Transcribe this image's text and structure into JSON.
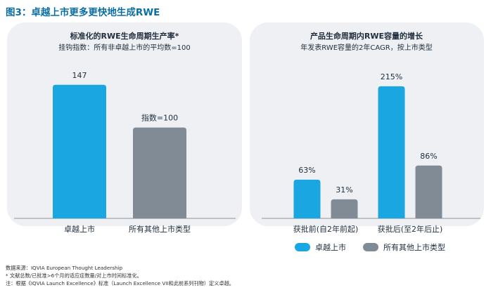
{
  "figure_title": "图3：卓越上市更多更快地生成RWE",
  "chart_data": [
    {
      "type": "bar",
      "title": "标准化的RWE生命周期生产率*",
      "subtitle": "挂钩指数：所有非卓越上市的平均数=100",
      "categories": [
        "卓越上市",
        "所有其他上市类型"
      ],
      "values": [
        147,
        100
      ],
      "data_labels": [
        "147",
        "指数=100"
      ],
      "colors": [
        "#1aa6e0",
        "#808b96"
      ],
      "ylim": [
        0,
        170
      ],
      "grid": false
    },
    {
      "type": "bar",
      "title": "产品生命周期内RWE容量的增长",
      "subtitle": "年发表RWE容量的2年CAGR，按上市类型",
      "categories": [
        "获批前(自2年前起)",
        "获批后(至2年后止)"
      ],
      "series": [
        {
          "name": "卓越上市",
          "values": [
            63,
            215
          ],
          "labels": [
            "63%",
            "215%"
          ],
          "color": "#1aa6e0"
        },
        {
          "name": "所有其他上市类型",
          "values": [
            31,
            86
          ],
          "labels": [
            "31%",
            "86%"
          ],
          "color": "#808b96"
        }
      ],
      "unit": "%",
      "ylim": [
        0,
        240
      ],
      "legend_position": "bottom",
      "grid": false
    }
  ],
  "footer": {
    "source": "数据来源：IQVIA European Thought Leadership",
    "note1": "* 文献总数/已批准>6个月的适应症数量/对上市时间标准化。",
    "note2": "注：根据《IQVIA Launch Excellence》标准（Launch Excellence VII和此前系列刊物）定义卓越。"
  }
}
